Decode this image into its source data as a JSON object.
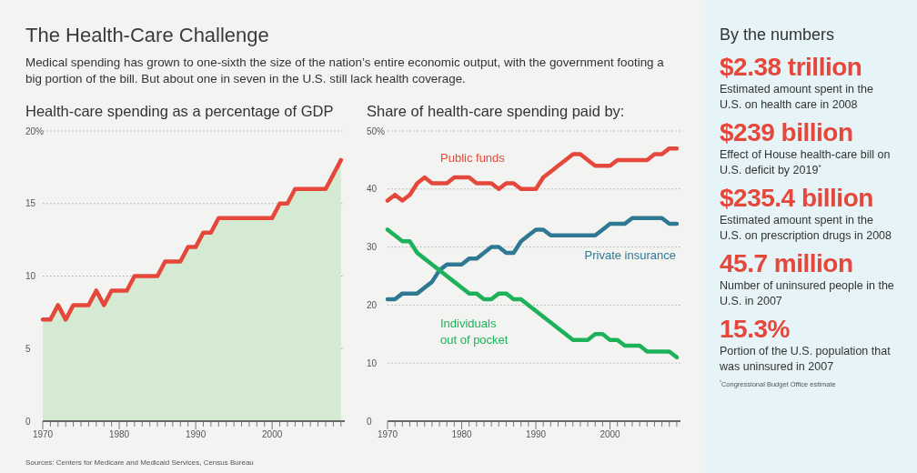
{
  "chart_data": [
    {
      "type": "other",
      "title": "The Health-Care Challenge",
      "subtitle": "Medical spending has grown to one-sixth the size of the nation’s entire economic output, with the government footing a big portion of the bill. But about one in seven in the U.S. still lack health coverage."
    },
    {
      "type": "area",
      "title": "Health-care spending as a percentage of GDP",
      "x": [
        1970,
        1971,
        1972,
        1973,
        1974,
        1975,
        1976,
        1977,
        1978,
        1979,
        1980,
        1981,
        1982,
        1983,
        1984,
        1985,
        1986,
        1987,
        1988,
        1989,
        1990,
        1991,
        1992,
        1993,
        1994,
        1995,
        1996,
        1997,
        1998,
        1999,
        2000,
        2001,
        2002,
        2003,
        2004,
        2005,
        2006,
        2007,
        2008,
        2009
      ],
      "series": [
        {
          "color": "#e5473b",
          "values": [
            7,
            7,
            8,
            7,
            8,
            8,
            8,
            9,
            8,
            9,
            9,
            9,
            10,
            10,
            10,
            10,
            11,
            11,
            11,
            12,
            12,
            13,
            13,
            14,
            14,
            14,
            14,
            14,
            14,
            14,
            14,
            15,
            15,
            16,
            16,
            16,
            16,
            16,
            17,
            18
          ]
        }
      ],
      "xlim": [
        1970,
        2009.5
      ],
      "xticks": [
        1970,
        {
          "value": 1971,
          "label": null
        },
        {
          "value": 1972,
          "label": null
        },
        {
          "value": 1973,
          "label": null
        },
        {
          "value": 1974,
          "label": null
        },
        {
          "value": 1975,
          "label": null
        },
        {
          "value": 1976,
          "label": null
        },
        {
          "value": 1977,
          "label": null
        },
        {
          "value": 1978,
          "label": null
        },
        {
          "value": 1979,
          "label": null
        },
        1980,
        {
          "value": 1981,
          "label": null
        },
        {
          "value": 1982,
          "label": null
        },
        {
          "value": 1983,
          "label": null
        },
        {
          "value": 1984,
          "label": null
        },
        {
          "value": 1985,
          "label": null
        },
        {
          "value": 1986,
          "label": null
        },
        {
          "value": 1987,
          "label": null
        },
        {
          "value": 1988,
          "label": null
        },
        {
          "value": 1989,
          "label": null
        },
        1990,
        {
          "value": 1991,
          "label": null
        },
        {
          "value": 1992,
          "label": null
        },
        {
          "value": 1993,
          "label": null
        },
        {
          "value": 1994,
          "label": null
        },
        {
          "value": 1995,
          "label": null
        },
        {
          "value": 1996,
          "label": null
        },
        {
          "value": 1997,
          "label": null
        },
        {
          "value": 1998,
          "label": null
        },
        {
          "value": 1999,
          "label": null
        },
        2000,
        {
          "value": 2001,
          "label": null
        },
        {
          "value": 2002,
          "label": null
        },
        {
          "value": 2003,
          "label": null
        },
        {
          "value": 2004,
          "label": null
        },
        {
          "value": 2005,
          "label": null
        },
        {
          "value": 2006,
          "label": null
        },
        {
          "value": 2007,
          "label": null
        },
        {
          "value": 2008,
          "label": null
        },
        {
          "value": 2009,
          "label": null
        }
      ],
      "ylim": [
        0,
        20
      ],
      "yticks": [
        0,
        5,
        10,
        15,
        {
          "value": 20,
          "label": "20%"
        }
      ],
      "grid": "y",
      "annotations": [
        "Sources: Centers for Medicare and Medicaid Services, Census Bureau"
      ]
    },
    {
      "type": "line",
      "title": "Share of health-care spending paid by:",
      "x": [
        1970,
        1971,
        1972,
        1973,
        1974,
        1975,
        1976,
        1977,
        1978,
        1979,
        1980,
        1981,
        1982,
        1983,
        1984,
        1985,
        1986,
        1987,
        1988,
        1989,
        1990,
        1991,
        1992,
        1993,
        1994,
        1995,
        1996,
        1997,
        1998,
        1999,
        2000,
        2001,
        2002,
        2003,
        2004,
        2005,
        2006,
        2007,
        2008,
        2009
      ],
      "series": [
        {
          "name": "Public funds",
          "color": "#e5473b",
          "values": [
            38,
            39,
            38,
            39,
            41,
            42,
            41,
            41,
            41,
            42,
            42,
            42,
            41,
            41,
            41,
            40,
            41,
            41,
            40,
            40,
            40,
            42,
            43,
            44,
            45,
            46,
            46,
            45,
            44,
            44,
            44,
            45,
            45,
            45,
            45,
            45,
            46,
            46,
            47,
            47
          ]
        },
        {
          "name": "Private insurance",
          "color": "#2f7893",
          "values": [
            21,
            21,
            22,
            22,
            22,
            23,
            24,
            26,
            27,
            27,
            27,
            28,
            28,
            29,
            30,
            30,
            29,
            29,
            31,
            32,
            33,
            33,
            32,
            32,
            32,
            32,
            32,
            32,
            32,
            33,
            34,
            34,
            34,
            35,
            35,
            35,
            35,
            35,
            34,
            34
          ]
        },
        {
          "name": "Individuals out of pocket",
          "color": "#1db25a",
          "values": [
            33,
            32,
            31,
            31,
            29,
            28,
            27,
            26,
            25,
            24,
            23,
            22,
            22,
            21,
            21,
            22,
            22,
            21,
            21,
            20,
            19,
            18,
            17,
            16,
            15,
            14,
            14,
            14,
            15,
            15,
            14,
            14,
            13,
            13,
            13,
            12,
            12,
            12,
            12,
            11
          ]
        }
      ],
      "xlim": [
        1970,
        2009.5
      ],
      "xticks": [
        1970,
        {
          "value": 1971,
          "label": null
        },
        {
          "value": 1972,
          "label": null
        },
        {
          "value": 1973,
          "label": null
        },
        {
          "value": 1974,
          "label": null
        },
        {
          "value": 1975,
          "label": null
        },
        {
          "value": 1976,
          "label": null
        },
        {
          "value": 1977,
          "label": null
        },
        {
          "value": 1978,
          "label": null
        },
        {
          "value": 1979,
          "label": null
        },
        1980,
        {
          "value": 1981,
          "label": null
        },
        {
          "value": 1982,
          "label": null
        },
        {
          "value": 1983,
          "label": null
        },
        {
          "value": 1984,
          "label": null
        },
        {
          "value": 1985,
          "label": null
        },
        {
          "value": 1986,
          "label": null
        },
        {
          "value": 1987,
          "label": null
        },
        {
          "value": 1988,
          "label": null
        },
        {
          "value": 1989,
          "label": null
        },
        1990,
        {
          "value": 1991,
          "label": null
        },
        {
          "value": 1992,
          "label": null
        },
        {
          "value": 1993,
          "label": null
        },
        {
          "value": 1994,
          "label": null
        },
        {
          "value": 1995,
          "label": null
        },
        {
          "value": 1996,
          "label": null
        },
        {
          "value": 1997,
          "label": null
        },
        {
          "value": 1998,
          "label": null
        },
        {
          "value": 1999,
          "label": null
        },
        2000,
        {
          "value": 2001,
          "label": null
        },
        {
          "value": 2002,
          "label": null
        },
        {
          "value": 2003,
          "label": null
        },
        {
          "value": 2004,
          "label": null
        },
        {
          "value": 2005,
          "label": null
        },
        {
          "value": 2006,
          "label": null
        },
        {
          "value": 2007,
          "label": null
        },
        {
          "value": 2008,
          "label": null
        },
        {
          "value": 2009,
          "label": null
        }
      ],
      "ylim": [
        0,
        50
      ],
      "yticks": [
        0,
        10,
        20,
        30,
        40,
        {
          "value": 50,
          "label": "50%"
        }
      ],
      "grid": "y"
    },
    {
      "type": "other",
      "title": "By the numbers",
      "annotations": [
        "$2.38 trillion",
        "Estimated amount spent in the U.S. on health care in 2008",
        "$239 billion",
        "Effect of House health-care bill on U.S. deficit by 2019$^{*}$",
        "$235.4 billion",
        "Estimated amount spent in the U.S. on prescription drugs in 2008",
        "45.7 million",
        "Number of uninsured people in the U.S. in 2007",
        "15.3%",
        "Portion of the U.S. population that was uninsured in 2007",
        "$^{*}$Congressional Budget Office estimate"
      ]
    }
  ]
}
